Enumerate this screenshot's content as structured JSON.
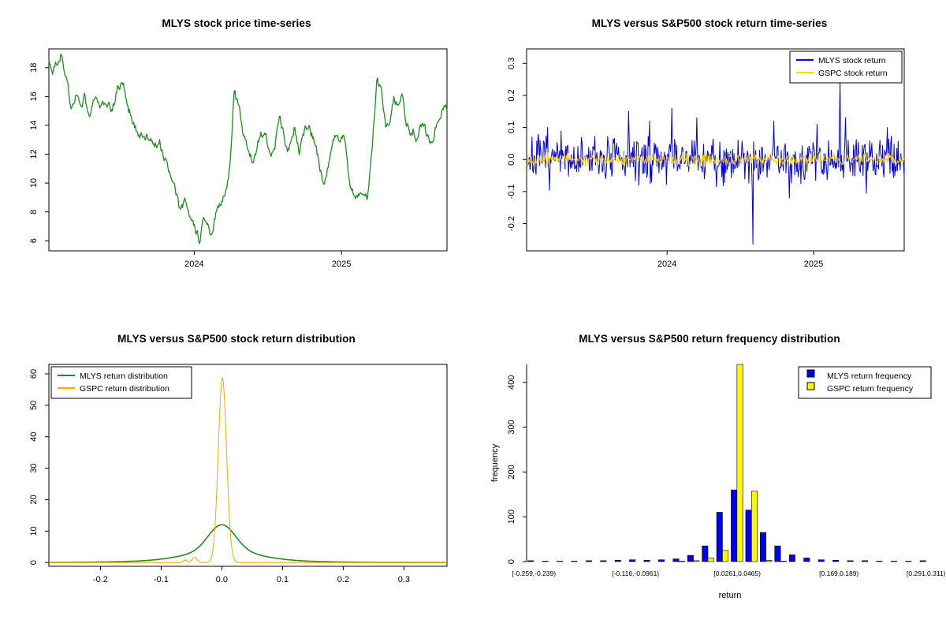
{
  "page": {
    "background": "#ffffff",
    "layout": "2x2 R plot grid"
  },
  "chart_data": [
    {
      "id": "price",
      "type": "line",
      "title": "MLYS stock price time-series",
      "ylim": [
        5.3,
        19.3
      ],
      "y_ticks": [
        6,
        8,
        10,
        12,
        14,
        16,
        18
      ],
      "y_tick_labels": [
        "6",
        "8",
        "10",
        "12",
        "14",
        "16",
        "18"
      ],
      "x_ticks": [
        {
          "pos": 0.365,
          "label": "2024"
        },
        {
          "pos": 0.735,
          "label": "2025"
        }
      ],
      "sample_points": 540,
      "series": [
        {
          "name": "MLYS price",
          "color": "#228B22",
          "waypoints": [
            [
              0,
              18.4
            ],
            [
              0.01,
              17.7
            ],
            [
              0.02,
              18.3
            ],
            [
              0.033,
              19.0
            ],
            [
              0.045,
              16.9
            ],
            [
              0.055,
              15.3
            ],
            [
              0.068,
              16.2
            ],
            [
              0.08,
              15.1
            ],
            [
              0.09,
              16.4
            ],
            [
              0.102,
              14.2
            ],
            [
              0.115,
              16.2
            ],
            [
              0.128,
              15.0
            ],
            [
              0.143,
              15.7
            ],
            [
              0.158,
              14.9
            ],
            [
              0.172,
              16.5
            ],
            [
              0.185,
              17.0
            ],
            [
              0.2,
              15.2
            ],
            [
              0.215,
              14.1
            ],
            [
              0.23,
              13.2
            ],
            [
              0.248,
              13.4
            ],
            [
              0.262,
              12.5
            ],
            [
              0.278,
              12.9
            ],
            [
              0.295,
              11.3
            ],
            [
              0.312,
              9.9
            ],
            [
              0.328,
              8.3
            ],
            [
              0.342,
              8.7
            ],
            [
              0.355,
              7.4
            ],
            [
              0.368,
              6.7
            ],
            [
              0.378,
              6.0
            ],
            [
              0.388,
              7.3
            ],
            [
              0.398,
              6.9
            ],
            [
              0.408,
              6.6
            ],
            [
              0.418,
              7.7
            ],
            [
              0.43,
              8.5
            ],
            [
              0.443,
              9.3
            ],
            [
              0.455,
              11.2
            ],
            [
              0.465,
              16.3
            ],
            [
              0.478,
              15.1
            ],
            [
              0.49,
              13.1
            ],
            [
              0.503,
              12.2
            ],
            [
              0.515,
              11.5
            ],
            [
              0.53,
              13.4
            ],
            [
              0.545,
              13.7
            ],
            [
              0.557,
              11.5
            ],
            [
              0.568,
              12.6
            ],
            [
              0.58,
              14.6
            ],
            [
              0.592,
              13.1
            ],
            [
              0.603,
              12.1
            ],
            [
              0.617,
              13.9
            ],
            [
              0.63,
              12.2
            ],
            [
              0.642,
              13.7
            ],
            [
              0.655,
              13.9
            ],
            [
              0.668,
              12.9
            ],
            [
              0.68,
              11.1
            ],
            [
              0.69,
              9.9
            ],
            [
              0.702,
              11.1
            ],
            [
              0.715,
              13.4
            ],
            [
              0.73,
              13.1
            ],
            [
              0.744,
              12.9
            ],
            [
              0.756,
              9.7
            ],
            [
              0.77,
              9.0
            ],
            [
              0.785,
              9.4
            ],
            [
              0.8,
              9.1
            ],
            [
              0.813,
              13.1
            ],
            [
              0.824,
              16.9
            ],
            [
              0.835,
              16.4
            ],
            [
              0.846,
              13.6
            ],
            [
              0.857,
              14.1
            ],
            [
              0.867,
              16.1
            ],
            [
              0.877,
              15.3
            ],
            [
              0.887,
              15.9
            ],
            [
              0.897,
              14.1
            ],
            [
              0.907,
              13.4
            ],
            [
              0.917,
              13.7
            ],
            [
              0.927,
              12.9
            ],
            [
              0.937,
              14.1
            ],
            [
              0.947,
              13.5
            ],
            [
              0.957,
              13.0
            ],
            [
              0.968,
              13.4
            ],
            [
              0.978,
              14.6
            ],
            [
              0.988,
              15.0
            ],
            [
              1,
              15.3
            ]
          ]
        }
      ]
    },
    {
      "id": "returns",
      "type": "returns",
      "title": "MLYS versus S&P500 stock return time-series",
      "ylim": [
        -0.285,
        0.345
      ],
      "y_ticks": [
        -0.2,
        -0.1,
        0.0,
        0.1,
        0.2,
        0.3
      ],
      "y_tick_labels": [
        "-0.2",
        "-0.1",
        "0.0",
        "0.1",
        "0.2",
        "0.3"
      ],
      "x_ticks": [
        {
          "pos": 0.372,
          "label": "2024"
        },
        {
          "pos": 0.76,
          "label": "2025"
        }
      ],
      "legend": {
        "position": "top-right",
        "items": [
          {
            "label": "MLYS stock return",
            "color": "#0000EE"
          },
          {
            "label": "GSPC stock return",
            "color": "#FFD700"
          }
        ]
      },
      "series": [
        {
          "name": "MLYS stock return",
          "color": "#0000EE",
          "sigma": 0.034,
          "sample_points": 560,
          "seed": 7,
          "width": 1,
          "spikes": [
            [
              0.055,
              0.1
            ],
            [
              0.27,
              0.15
            ],
            [
              0.325,
              0.12
            ],
            [
              0.385,
              0.16
            ],
            [
              0.45,
              0.13
            ],
            [
              0.6,
              -0.265
            ],
            [
              0.655,
              0.12
            ],
            [
              0.695,
              -0.12
            ],
            [
              0.77,
              0.11
            ],
            [
              0.83,
              0.25
            ],
            [
              0.845,
              0.13
            ],
            [
              0.9,
              -0.105
            ],
            [
              0.955,
              0.1
            ]
          ]
        },
        {
          "name": "GSPC stock return",
          "color": "#FFD700",
          "sigma": 0.009,
          "sample_points": 560,
          "seed": 13,
          "width": 0.9,
          "spikes": []
        }
      ]
    },
    {
      "id": "density",
      "type": "density",
      "title": "MLYS versus S&P500 stock return distribution",
      "xlim": [
        -0.285,
        0.371
      ],
      "ylim": [
        -1.2,
        63
      ],
      "x_ticks": [
        -0.2,
        -0.1,
        0.0,
        0.1,
        0.2,
        0.3
      ],
      "x_tick_labels": [
        "-0.2",
        "-0.1",
        "0.0",
        "0.1",
        "0.2",
        "0.3"
      ],
      "y_ticks": [
        0,
        10,
        20,
        30,
        40,
        50,
        60
      ],
      "y_tick_labels": [
        "0",
        "10",
        "20",
        "30",
        "40",
        "50",
        "60"
      ],
      "legend": {
        "position": "top-left",
        "items": [
          {
            "label": "MLYS return distribution",
            "color": "#228B22"
          },
          {
            "label": "GSPC return distribution",
            "color": "#FFA500"
          }
        ]
      },
      "curves": [
        {
          "name": "MLYS return distribution",
          "color": "#228B22",
          "width": 1.6,
          "peak_value": 12,
          "components": [
            {
              "mu": 0.0,
              "sigma": 0.022,
              "peak": 8.2
            },
            {
              "mu": 0.0,
              "sigma": 0.055,
              "peak": 3.0
            },
            {
              "mu": 0.0,
              "sigma": 0.11,
              "peak": 0.8
            }
          ]
        },
        {
          "name": "GSPC return distribution",
          "color": "#FFA500",
          "width": 1,
          "peak_value": 59,
          "components": [
            {
              "mu": 0.001,
              "sigma": 0.0068,
              "peak": 58.8
            },
            {
              "mu": -0.045,
              "sigma": 0.004,
              "peak": 1.6
            },
            {
              "mu": -0.06,
              "sigma": 0.003,
              "peak": 0.8
            }
          ]
        }
      ]
    },
    {
      "id": "histogram",
      "type": "hist",
      "title": "MLYS versus S&P500 return frequency distribution",
      "xlabel": "return",
      "ylabel": "frequency",
      "n_bins": 28,
      "bin_width": 0.0204,
      "ylim": [
        0,
        440
      ],
      "y_ticks": [
        0,
        100,
        200,
        300,
        400
      ],
      "y_tick_labels": [
        "0",
        "100",
        "200",
        "300",
        "400"
      ],
      "x_tick_bins": [
        {
          "bin": 1,
          "label": "[-0.259,-0.239)"
        },
        {
          "bin": 8,
          "label": "[-0.116,-0.0961)"
        },
        {
          "bin": 15,
          "label": "[0.0261,0.0465)"
        },
        {
          "bin": 22,
          "label": "[0.169,0.189)"
        },
        {
          "bin": 28,
          "label": "[0.291,0.311)"
        }
      ],
      "center_bin_clipped": true,
      "legend": {
        "position": "top-right",
        "items": [
          {
            "label": "MLYS return frequency",
            "color": "#0000EE"
          },
          {
            "label": "GSPC return frequency",
            "color": "#F8F800"
          }
        ]
      },
      "series": [
        {
          "name": "MLYS return frequency",
          "color": "#0000EE",
          "values": [
            2,
            1,
            1,
            1,
            2,
            2,
            3,
            4,
            3,
            4,
            6,
            14,
            35,
            110,
            160,
            115,
            65,
            35,
            15,
            8,
            4,
            3,
            2,
            2,
            1,
            1,
            1,
            2
          ]
        },
        {
          "name": "GSPC return frequency",
          "color": "#F8F800",
          "values": [
            0,
            0,
            0,
            0,
            0,
            0,
            0,
            0,
            0,
            0,
            1,
            2,
            8,
            25,
            440,
            157,
            3,
            1,
            0,
            0,
            0,
            0,
            0,
            0,
            0,
            0,
            0,
            0
          ]
        }
      ]
    }
  ]
}
